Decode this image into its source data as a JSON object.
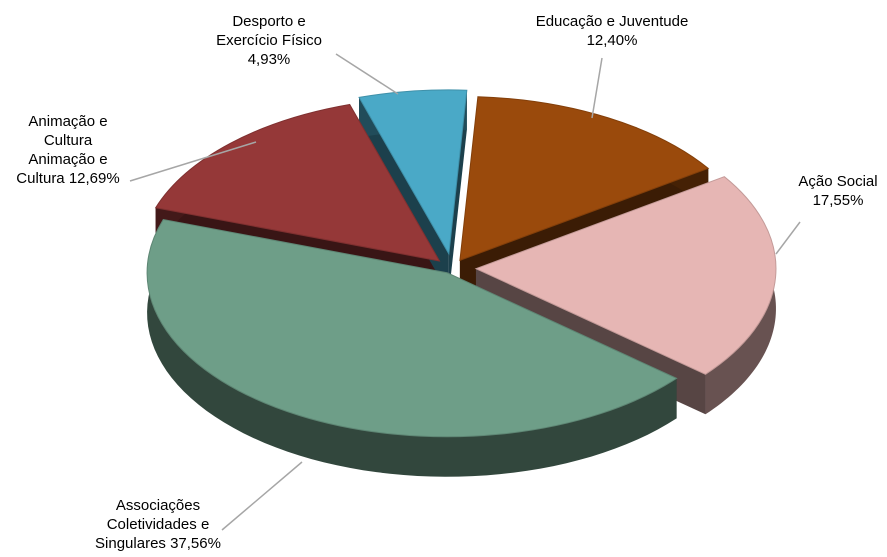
{
  "chart_data": {
    "type": "pie",
    "title": "",
    "slices": [
      {
        "name": "Educação e Juventude",
        "value": 12.4,
        "label_lines": [
          "Educação e Juventude",
          "12,40%"
        ],
        "color": "#9a4a0c"
      },
      {
        "name": "Ação Social",
        "value": 17.55,
        "label_lines": [
          "Ação Social",
          "17,55%"
        ],
        "color": "#e6b6b4"
      },
      {
        "name": "Associações Coletividades e Singulares",
        "value": 37.56,
        "label_lines": [
          "Associações",
          "Coletividades e",
          "Singulares 37,56%"
        ],
        "color": "#6e9e88"
      },
      {
        "name": "Animação e Cultura",
        "value": 12.69,
        "label_lines": [
          "Animação e",
          "Cultura",
          "Animação e",
          "Cultura 12,69%"
        ],
        "color": "#953838"
      },
      {
        "name": "Desporto e Exercício Físico",
        "value": 4.93,
        "label_lines": [
          "Desporto e",
          "Exercício Físico",
          "4,93%"
        ],
        "color": "#4aa9c7"
      }
    ],
    "legend": "none",
    "style": "3d-exploded"
  }
}
